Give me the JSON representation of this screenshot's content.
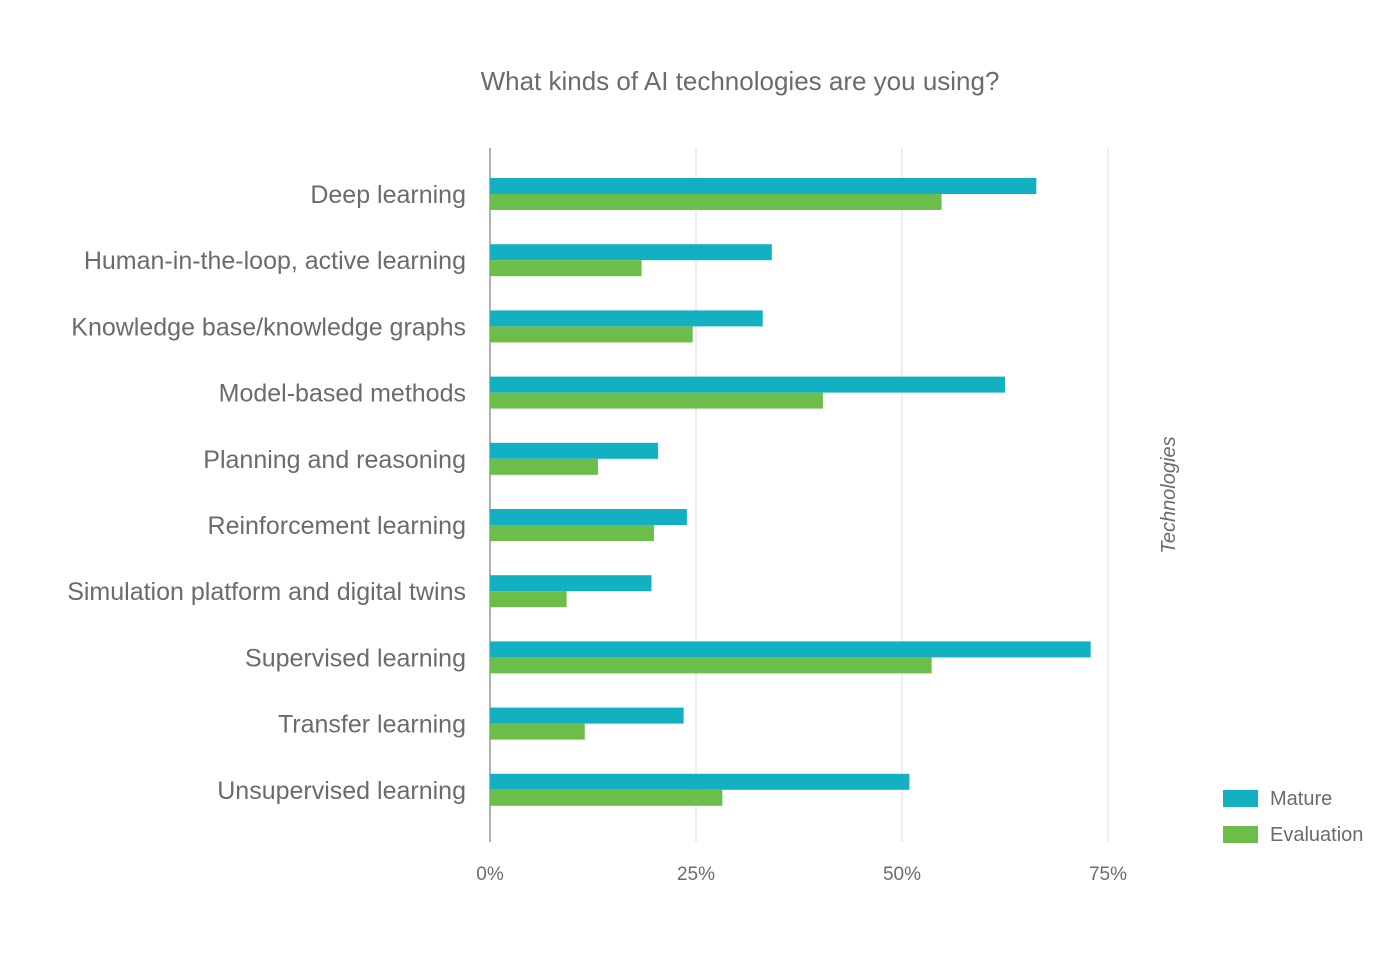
{
  "chart_data": {
    "type": "bar",
    "orientation": "horizontal",
    "title": "What kinds of AI technologies are you using?",
    "ylabel": "Technologies",
    "xlabel": "",
    "xlim": [
      0,
      75
    ],
    "x_ticks": [
      0,
      25,
      50,
      75
    ],
    "x_tick_labels": [
      "0%",
      "25%",
      "50%",
      "75%"
    ],
    "grid": true,
    "legend_position": "bottom-right",
    "categories": [
      "Deep learning",
      "Human-in-the-loop, active learning",
      "Knowledge base/knowledge graphs",
      "Model-based methods",
      "Planning and reasoning",
      "Reinforcement learning",
      "Simulation platform and digital twins",
      "Supervised learning",
      "Transfer learning",
      "Unsupervised learning"
    ],
    "series": [
      {
        "name": "Mature",
        "color": "#13b0c2",
        "values": [
          66.3,
          34.2,
          33.1,
          62.5,
          20.4,
          23.9,
          19.6,
          72.9,
          23.5,
          50.9
        ]
      },
      {
        "name": "Evaluation",
        "color": "#6dbd4b",
        "values": [
          54.8,
          18.4,
          24.6,
          40.4,
          13.1,
          19.9,
          9.3,
          53.6,
          11.5,
          28.2
        ]
      }
    ]
  }
}
